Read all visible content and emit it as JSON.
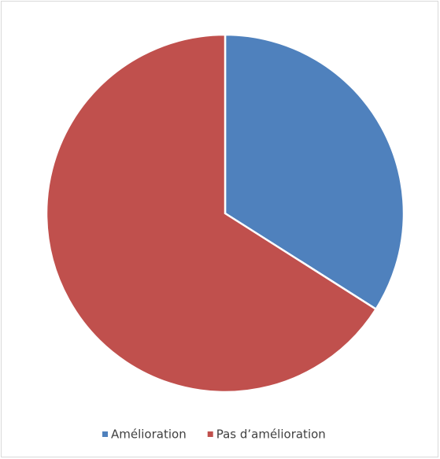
{
  "chart_data": {
    "type": "pie",
    "categories": [
      "Amélioration",
      "Pas d’amélioration"
    ],
    "values": [
      34,
      66
    ],
    "colors": [
      "#4f81bd",
      "#c0504d"
    ],
    "legend": "bottom"
  }
}
